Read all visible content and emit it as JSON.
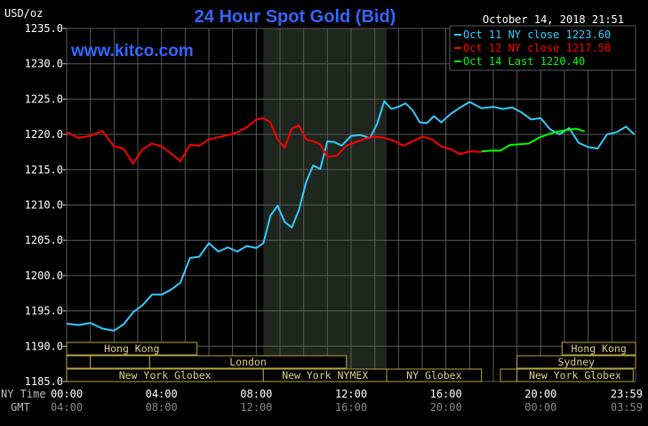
{
  "chart_data": {
    "type": "line",
    "title": "24 Hour Spot Gold (Bid)",
    "ylabel": "USD/oz",
    "website": "www.kitco.com",
    "timestamp": "October 14, 2018 21:51",
    "ylim": [
      1185,
      1235
    ],
    "y_ticks": [
      "1235.0",
      "1230.0",
      "1225.0",
      "1220.0",
      "1215.0",
      "1210.0",
      "1205.0",
      "1200.0",
      "1195.0",
      "1190.0",
      "1185.0"
    ],
    "xlim": [
      0,
      24
    ],
    "x_row_labels": {
      "nytime": "NY Time",
      "gmt": "GMT"
    },
    "x_ticks": [
      {
        "x": 0,
        "ny": "00:00",
        "gmt": "04:00"
      },
      {
        "x": 4,
        "ny": "04:00",
        "gmt": "08:00"
      },
      {
        "x": 8,
        "ny": "08:00",
        "gmt": "12:00"
      },
      {
        "x": 12,
        "ny": "12:00",
        "gmt": "16:00"
      },
      {
        "x": 16,
        "ny": "16:00",
        "gmt": "20:00"
      },
      {
        "x": 20,
        "ny": "20:00",
        "gmt": "00:00"
      },
      {
        "x": 24,
        "ny": "23:59",
        "gmt": "03:59"
      }
    ],
    "grid": true,
    "legend_position": "top-right",
    "colors": {
      "oct11": "#33ccff",
      "oct12": "#ff0000",
      "oct14": "#00ff00",
      "title": "#3366ff",
      "grid": "#5a5a5a",
      "highlight": "#1e261e",
      "session_border": "#b8a640"
    },
    "highlight_region": [
      8.3,
      13.5
    ],
    "sessions": [
      {
        "label": "Hong Kong",
        "start": 0,
        "end": 5.5,
        "row": 0
      },
      {
        "label": "Hong Kong",
        "start": 20.9,
        "end": 24,
        "row": 0
      },
      {
        "label": "",
        "start": 0,
        "end": 1,
        "row": 1
      },
      {
        "label": "",
        "start": 1,
        "end": 3.5,
        "row": 1
      },
      {
        "label": "London",
        "start": 3.5,
        "end": 11.8,
        "row": 1
      },
      {
        "label": "Sydney",
        "start": 19,
        "end": 24,
        "row": 1
      },
      {
        "label": "New York Globex",
        "start": 0,
        "end": 8.3,
        "row": 2
      },
      {
        "label": "New York NYMEX",
        "start": 8.3,
        "end": 13.5,
        "row": 2
      },
      {
        "label": "NY Globex",
        "start": 13.5,
        "end": 17.5,
        "row": 2
      },
      {
        "label": "",
        "start": 18.3,
        "end": 19,
        "row": 2
      },
      {
        "label": "New York Globex",
        "start": 19,
        "end": 23.9,
        "row": 2
      }
    ],
    "series": [
      {
        "key": "oct11",
        "name": "Oct 11 NY close 1223.60",
        "x": [
          0,
          0.5,
          1,
          1.5,
          2,
          2.4,
          2.8,
          3.2,
          3.6,
          4,
          4.4,
          4.8,
          5.2,
          5.6,
          6,
          6.4,
          6.8,
          7.2,
          7.6,
          8,
          8.3,
          8.6,
          8.9,
          9.2,
          9.5,
          9.8,
          10.1,
          10.4,
          10.7,
          11,
          11.3,
          11.6,
          12,
          12.4,
          12.8,
          13.1,
          13.4,
          13.7,
          14,
          14.3,
          14.6,
          14.9,
          15.2,
          15.5,
          15.8,
          16.2,
          16.6,
          17,
          17.5,
          18,
          18.4,
          18.8,
          19.2,
          19.6,
          20,
          20.4,
          20.8,
          21.2,
          21.6,
          22,
          22.4,
          22.8,
          23.2,
          23.6,
          23.95
        ],
        "values": [
          1193.2,
          1193.0,
          1193.3,
          1192.5,
          1192.2,
          1193.1,
          1194.8,
          1195.8,
          1197.3,
          1197.3,
          1198.0,
          1199.0,
          1202.5,
          1202.7,
          1204.6,
          1203.4,
          1204.0,
          1203.4,
          1204.2,
          1203.9,
          1204.6,
          1208.5,
          1209.9,
          1207.6,
          1206.8,
          1209.3,
          1213.2,
          1215.6,
          1215.1,
          1219.0,
          1218.9,
          1218.4,
          1219.8,
          1219.9,
          1219.5,
          1221.5,
          1224.7,
          1223.6,
          1223.9,
          1224.4,
          1223.4,
          1221.7,
          1221.6,
          1222.6,
          1221.7,
          1222.9,
          1223.8,
          1224.6,
          1223.7,
          1223.9,
          1223.6,
          1223.8,
          1223.1,
          1222.1,
          1222.3,
          1220.7,
          1220.0,
          1220.9,
          1218.8,
          1218.2,
          1218.0,
          1220.0,
          1220.3,
          1221.1,
          1220.0
        ]
      },
      {
        "key": "oct12",
        "name": "Oct 12 NY close 1217.50",
        "x": [
          0,
          0.5,
          1,
          1.5,
          2,
          2.4,
          2.8,
          3.2,
          3.6,
          4,
          4.4,
          4.8,
          5.2,
          5.6,
          6,
          6.4,
          6.8,
          7.2,
          7.6,
          8,
          8.3,
          8.6,
          8.9,
          9.2,
          9.5,
          9.8,
          10.1,
          10.4,
          10.7,
          11,
          11.4,
          11.8,
          12.2,
          12.6,
          13,
          13.4,
          13.8,
          14.2,
          14.6,
          15,
          15.4,
          15.8,
          16.2,
          16.6,
          17,
          17.5
        ],
        "values": [
          1220.3,
          1219.5,
          1219.8,
          1220.5,
          1218.3,
          1218.0,
          1215.9,
          1217.9,
          1218.7,
          1218.3,
          1217.3,
          1216.2,
          1218.5,
          1218.4,
          1219.3,
          1219.6,
          1219.9,
          1220.3,
          1221.0,
          1222.1,
          1222.3,
          1221.7,
          1219.3,
          1218.1,
          1220.8,
          1221.3,
          1219.3,
          1219.0,
          1218.6,
          1216.8,
          1217.0,
          1218.4,
          1218.9,
          1219.4,
          1219.7,
          1219.5,
          1219.1,
          1218.4,
          1219.0,
          1219.7,
          1219.3,
          1218.3,
          1217.9,
          1217.2,
          1217.6,
          1217.5
        ]
      },
      {
        "key": "oct14",
        "name": "Oct 14 Last 1220.40",
        "x": [
          17.5,
          17.9,
          18.3,
          18.7,
          19.1,
          19.5,
          19.9,
          20.3,
          20.7,
          21.1,
          21.5,
          21.85
        ],
        "values": [
          1217.6,
          1217.7,
          1217.7,
          1218.5,
          1218.6,
          1218.7,
          1219.5,
          1220.0,
          1220.4,
          1220.6,
          1220.8,
          1220.4
        ]
      }
    ]
  }
}
